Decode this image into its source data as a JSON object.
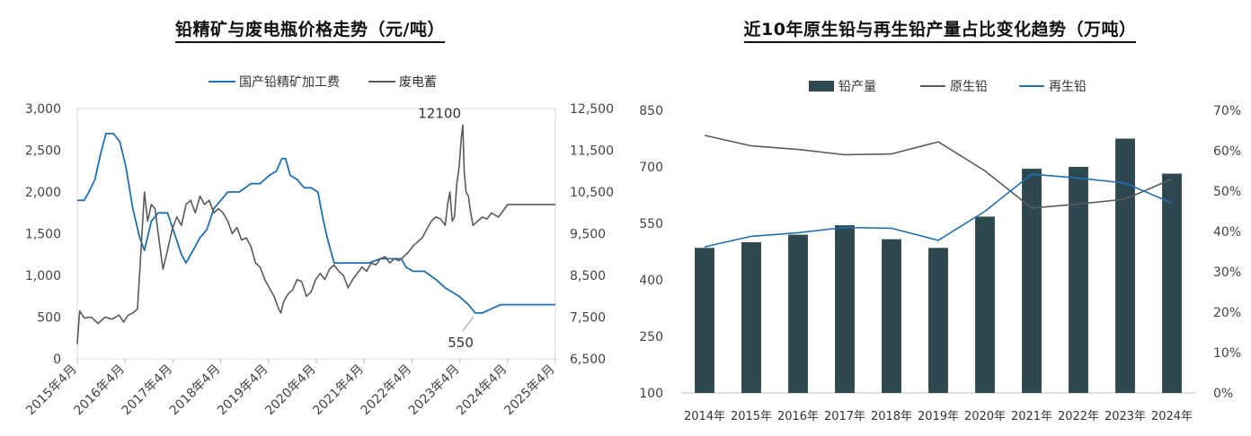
{
  "chart_data": [
    {
      "type": "line",
      "title": "铅精矿与废电瓶价格走势（元/吨）",
      "legend_position": "top",
      "x_labels": [
        "2015年4月",
        "2016年4月",
        "2017年4月",
        "2018年4月",
        "2019年4月",
        "2020年4月",
        "2021年4月",
        "2022年4月",
        "2023年4月",
        "2024年4月",
        "2025年4月"
      ],
      "x_start": 2015.0,
      "x_end": 2025.33,
      "y_left": {
        "ticks": [
          "0",
          "500",
          "1,000",
          "1,500",
          "2,000",
          "2,500",
          "3,000"
        ],
        "range": [
          0,
          3000
        ]
      },
      "y_right": {
        "ticks": [
          "6,500",
          "7,500",
          "8,500",
          "9,500",
          "10,500",
          "11,500",
          "12,500"
        ],
        "range": [
          6500,
          12500
        ]
      },
      "series": [
        {
          "name": "国产铅精矿加工费",
          "axis": "left",
          "color": "#1f6fb4",
          "points": [
            [
              2015.0,
              1900
            ],
            [
              2015.15,
              1900
            ],
            [
              2015.25,
              2000
            ],
            [
              2015.38,
              2150
            ],
            [
              2015.5,
              2450
            ],
            [
              2015.62,
              2700
            ],
            [
              2015.78,
              2700
            ],
            [
              2015.92,
              2600
            ],
            [
              2016.05,
              2300
            ],
            [
              2016.2,
              1800
            ],
            [
              2016.35,
              1450
            ],
            [
              2016.45,
              1300
            ],
            [
              2016.6,
              1650
            ],
            [
              2016.75,
              1750
            ],
            [
              2016.95,
              1750
            ],
            [
              2017.1,
              1500
            ],
            [
              2017.25,
              1250
            ],
            [
              2017.35,
              1150
            ],
            [
              2017.5,
              1300
            ],
            [
              2017.65,
              1450
            ],
            [
              2017.8,
              1550
            ],
            [
              2017.95,
              1800
            ],
            [
              2018.1,
              1900
            ],
            [
              2018.25,
              2000
            ],
            [
              2018.5,
              2000
            ],
            [
              2018.75,
              2100
            ],
            [
              2018.95,
              2100
            ],
            [
              2019.15,
              2200
            ],
            [
              2019.3,
              2250
            ],
            [
              2019.42,
              2400
            ],
            [
              2019.5,
              2400
            ],
            [
              2019.6,
              2200
            ],
            [
              2019.75,
              2150
            ],
            [
              2019.9,
              2050
            ],
            [
              2020.05,
              2050
            ],
            [
              2020.2,
              2000
            ],
            [
              2020.3,
              1700
            ],
            [
              2020.4,
              1450
            ],
            [
              2020.55,
              1150
            ],
            [
              2020.8,
              1150
            ],
            [
              2021.0,
              1150
            ],
            [
              2021.3,
              1150
            ],
            [
              2021.55,
              1200
            ],
            [
              2021.75,
              1200
            ],
            [
              2022.0,
              1200
            ],
            [
              2022.1,
              1100
            ],
            [
              2022.25,
              1050
            ],
            [
              2022.5,
              1050
            ],
            [
              2022.75,
              950
            ],
            [
              2022.95,
              850
            ],
            [
              2023.1,
              800
            ],
            [
              2023.25,
              750
            ],
            [
              2023.45,
              650
            ],
            [
              2023.6,
              550
            ],
            [
              2023.75,
              550
            ],
            [
              2023.95,
              600
            ],
            [
              2024.15,
              650
            ],
            [
              2024.4,
              650
            ],
            [
              2025.33,
              650
            ]
          ]
        },
        {
          "name": "废电蓄",
          "axis": "right",
          "color": "#5a5a5a",
          "points": [
            [
              2015.0,
              6850
            ],
            [
              2015.05,
              7650
            ],
            [
              2015.15,
              7480
            ],
            [
              2015.3,
              7500
            ],
            [
              2015.45,
              7350
            ],
            [
              2015.6,
              7500
            ],
            [
              2015.75,
              7450
            ],
            [
              2015.9,
              7550
            ],
            [
              2016.0,
              7380
            ],
            [
              2016.1,
              7550
            ],
            [
              2016.2,
              7600
            ],
            [
              2016.3,
              7700
            ],
            [
              2016.35,
              8600
            ],
            [
              2016.45,
              10500
            ],
            [
              2016.52,
              9800
            ],
            [
              2016.6,
              10200
            ],
            [
              2016.68,
              10100
            ],
            [
              2016.75,
              9500
            ],
            [
              2016.85,
              8650
            ],
            [
              2016.95,
              9100
            ],
            [
              2017.05,
              9600
            ],
            [
              2017.15,
              9900
            ],
            [
              2017.25,
              9700
            ],
            [
              2017.35,
              10200
            ],
            [
              2017.45,
              10300
            ],
            [
              2017.55,
              10000
            ],
            [
              2017.65,
              10400
            ],
            [
              2017.75,
              10200
            ],
            [
              2017.85,
              10300
            ],
            [
              2017.95,
              10000
            ],
            [
              2018.05,
              10100
            ],
            [
              2018.15,
              10000
            ],
            [
              2018.25,
              9800
            ],
            [
              2018.35,
              9500
            ],
            [
              2018.45,
              9650
            ],
            [
              2018.55,
              9350
            ],
            [
              2018.65,
              9400
            ],
            [
              2018.75,
              9200
            ],
            [
              2018.85,
              8800
            ],
            [
              2018.95,
              8700
            ],
            [
              2019.05,
              8400
            ],
            [
              2019.15,
              8200
            ],
            [
              2019.25,
              8000
            ],
            [
              2019.35,
              7700
            ],
            [
              2019.4,
              7600
            ],
            [
              2019.45,
              7850
            ],
            [
              2019.55,
              8050
            ],
            [
              2019.65,
              8150
            ],
            [
              2019.75,
              8400
            ],
            [
              2019.85,
              8350
            ],
            [
              2019.95,
              8000
            ],
            [
              2020.05,
              8100
            ],
            [
              2020.15,
              8400
            ],
            [
              2020.25,
              8550
            ],
            [
              2020.35,
              8400
            ],
            [
              2020.45,
              8650
            ],
            [
              2020.55,
              8750
            ],
            [
              2020.65,
              8600
            ],
            [
              2020.75,
              8500
            ],
            [
              2020.85,
              8200
            ],
            [
              2020.95,
              8400
            ],
            [
              2021.05,
              8550
            ],
            [
              2021.15,
              8700
            ],
            [
              2021.25,
              8600
            ],
            [
              2021.35,
              8800
            ],
            [
              2021.45,
              8750
            ],
            [
              2021.55,
              8900
            ],
            [
              2021.65,
              8950
            ],
            [
              2021.75,
              8800
            ],
            [
              2021.85,
              8900
            ],
            [
              2021.95,
              8850
            ],
            [
              2022.05,
              8950
            ],
            [
              2022.15,
              9050
            ],
            [
              2022.25,
              9200
            ],
            [
              2022.35,
              9300
            ],
            [
              2022.45,
              9400
            ],
            [
              2022.55,
              9600
            ],
            [
              2022.65,
              9800
            ],
            [
              2022.75,
              9900
            ],
            [
              2022.85,
              9850
            ],
            [
              2022.95,
              9700
            ],
            [
              2023.0,
              10200
            ],
            [
              2023.05,
              10500
            ],
            [
              2023.1,
              9800
            ],
            [
              2023.15,
              9900
            ],
            [
              2023.2,
              10700
            ],
            [
              2023.25,
              11100
            ],
            [
              2023.3,
              11850
            ],
            [
              2023.33,
              12100
            ],
            [
              2023.36,
              11000
            ],
            [
              2023.4,
              10500
            ],
            [
              2023.45,
              10400
            ],
            [
              2023.5,
              10000
            ],
            [
              2023.55,
              9700
            ],
            [
              2023.65,
              9800
            ],
            [
              2023.75,
              9900
            ],
            [
              2023.85,
              9850
            ],
            [
              2023.95,
              10000
            ],
            [
              2024.1,
              9900
            ],
            [
              2024.2,
              10050
            ],
            [
              2024.3,
              10200
            ],
            [
              2025.0,
              10200
            ],
            [
              2025.33,
              10200
            ]
          ]
        }
      ],
      "annotations": [
        {
          "text": "12100",
          "series": "废电蓄"
        },
        {
          "text": "550",
          "series": "国产铅精矿加工费"
        }
      ]
    },
    {
      "type": "bar+line",
      "title": "近10年原生铅与再生铅产量占比变化趋势（万吨）",
      "legend_position": "top",
      "categories": [
        "2014年",
        "2015年",
        "2016年",
        "2017年",
        "2018年",
        "2019年",
        "2020年",
        "2021年",
        "2022年",
        "2023年",
        "2024年"
      ],
      "y_left": {
        "ticks": [
          "100",
          "250",
          "400",
          "550",
          "700",
          "850"
        ],
        "range": [
          100,
          850
        ]
      },
      "y_right": {
        "ticks": [
          "0%",
          "10%",
          "20%",
          "30%",
          "40%",
          "50%",
          "60%",
          "70%"
        ],
        "range": [
          0,
          70
        ]
      },
      "series": [
        {
          "name": "铅产量",
          "type": "bar",
          "axis": "left",
          "color": "#2e4850",
          "values": [
            485,
            500,
            520,
            545,
            508,
            485,
            568,
            695,
            700,
            775,
            682
          ]
        },
        {
          "name": "原生铅",
          "type": "line",
          "axis": "right",
          "color": "#5a5a5a",
          "values": [
            63.8,
            61.2,
            60.3,
            59.0,
            59.2,
            62.2,
            55.0,
            45.8,
            46.8,
            48.0,
            53.0
          ]
        },
        {
          "name": "再生铅",
          "type": "line",
          "axis": "right",
          "color": "#1f6fb4",
          "values": [
            36.2,
            38.8,
            39.7,
            41.0,
            40.8,
            37.8,
            45.0,
            54.2,
            53.2,
            52.0,
            47.0
          ]
        }
      ]
    }
  ]
}
